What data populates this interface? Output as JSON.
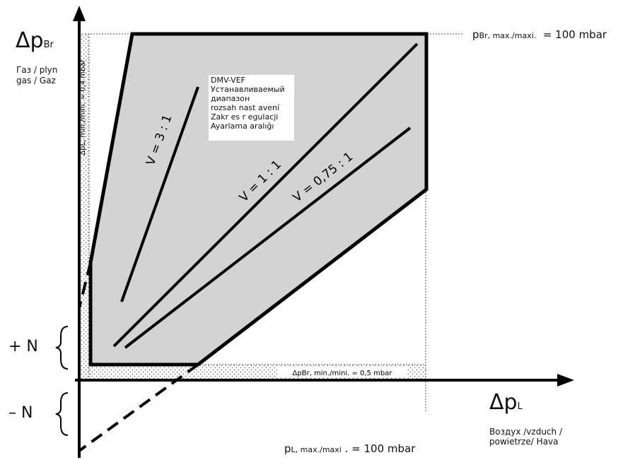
{
  "axes": {
    "y_symbol": "Δp",
    "y_subscript": "Br",
    "x_symbol": "Δp",
    "x_subscript": "L"
  },
  "y_axis_medium": [
    "Газ / plyn",
    "gas / Gaz"
  ],
  "x_axis_medium": [
    "Воздух /vzduch /",
    "powietrze/ Hava"
  ],
  "limits": {
    "pbr_max_prefix": "p",
    "pbr_max_sub": "Br, max./maxi.",
    "pbr_max_value": "= 100 mbar",
    "pl_max_prefix": "p",
    "pl_max_sub": "L, max./maxi",
    "pl_max_value": ". = 100 mbar",
    "dpl_min": "ΔpL, min./mini. = 0,4 mbar",
    "dpbr_min": "ΔpBr, min./mini. = 0,5 mbar"
  },
  "offset_labels": {
    "plus": "+ N",
    "minus": "– N"
  },
  "ratio_lines": [
    {
      "label": "V = 3 : 1"
    },
    {
      "label": "V = 1 : 1"
    },
    {
      "label": "V = 0,75 : 1"
    }
  ],
  "legend": [
    "DMV-VEF",
    "Устанавливаемый",
    "диапазон",
    "rozsah nast avení",
    "Zakr es r egulacji",
    "Ayarlama aralığı"
  ],
  "colors": {
    "region_fill": "#d3d3d3",
    "line": "#000000",
    "dotted_band": "#666666"
  }
}
